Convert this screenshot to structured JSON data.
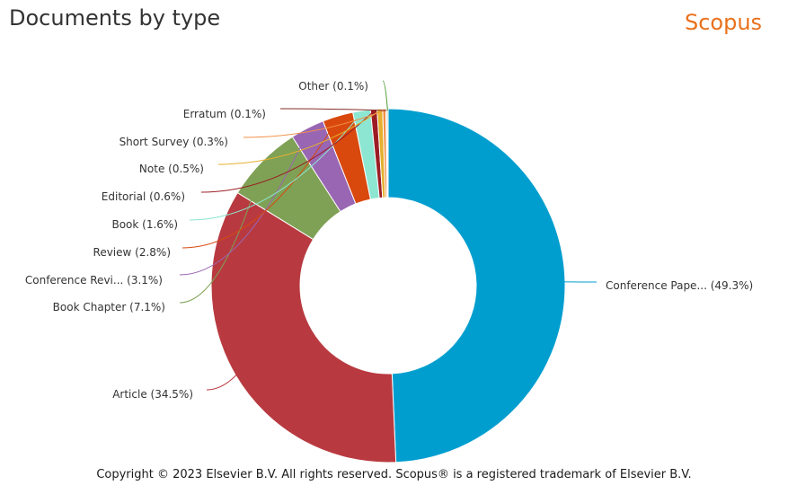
{
  "header": {
    "title": "Documents by type",
    "brand": "Scopus",
    "brand_color": "#e9711c"
  },
  "footer": {
    "copyright": "Copyright © 2023 Elsevier B.V. All rights reserved. Scopus® is a registered trademark of Elsevier B.V."
  },
  "chart_data": {
    "type": "pie",
    "variant": "donut",
    "slices": [
      {
        "label": "Conference Pape...",
        "value": 49.3,
        "display": "Conference Pape... (49.3%)",
        "color": "#009ecf"
      },
      {
        "label": "Article",
        "value": 34.5,
        "display": "Article (34.5%)",
        "color": "#b83a40"
      },
      {
        "label": "Book Chapter",
        "value": 7.1,
        "display": "Book Chapter (7.1%)",
        "color": "#7fa155"
      },
      {
        "label": "Conference Revi...",
        "value": 3.1,
        "display": "Conference Revi... (3.1%)",
        "color": "#9966b3"
      },
      {
        "label": "Review",
        "value": 2.8,
        "display": "Review (2.8%)",
        "color": "#d9480d"
      },
      {
        "label": "Book",
        "value": 1.6,
        "display": "Book (1.6%)",
        "color": "#8de6d1"
      },
      {
        "label": "Editorial",
        "value": 0.6,
        "display": "Editorial (0.6%)",
        "color": "#9c1c24"
      },
      {
        "label": "Note",
        "value": 0.5,
        "display": "Note (0.5%)",
        "color": "#e5b02e"
      },
      {
        "label": "Short Survey",
        "value": 0.3,
        "display": "Short Survey (0.3%)",
        "color": "#f29148"
      },
      {
        "label": "Erratum",
        "value": 0.1,
        "display": "Erratum (0.1%)",
        "color": "#822f26"
      },
      {
        "label": "Other",
        "value": 0.1,
        "display": "Other (0.1%)",
        "color": "#4a9a30"
      }
    ]
  }
}
